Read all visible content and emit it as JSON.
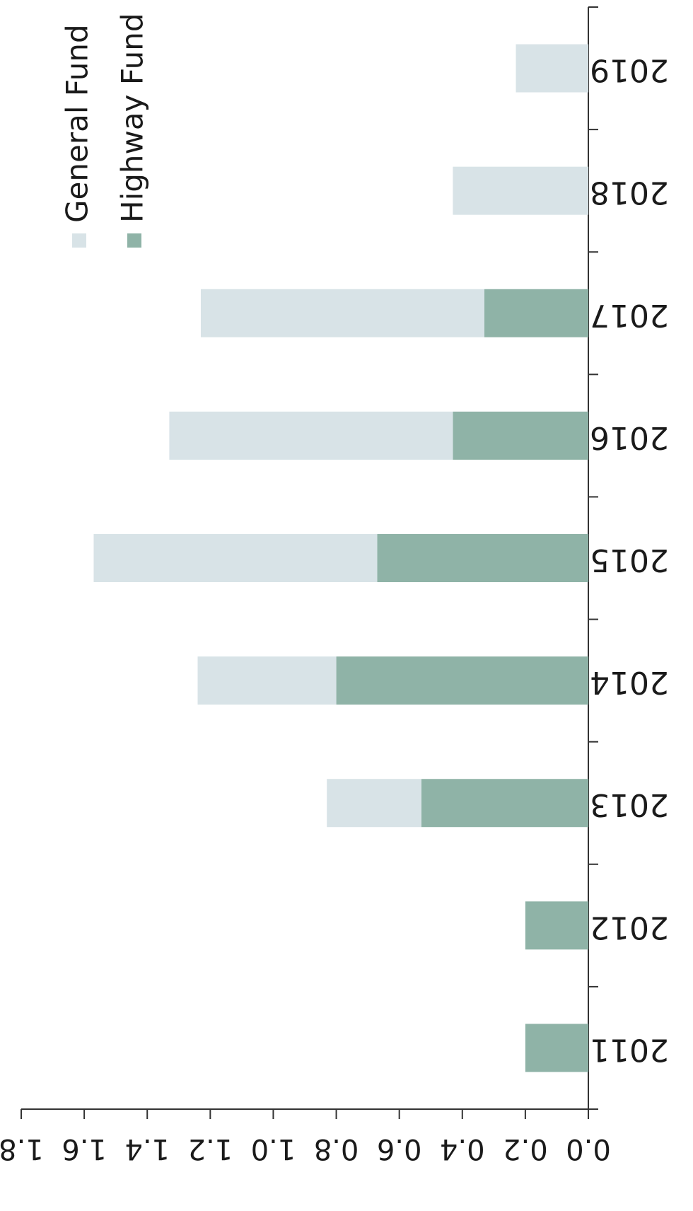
{
  "chart_data": {
    "type": "bar",
    "stacked": true,
    "orientation": "rotated",
    "categories": [
      "2011",
      "2012",
      "2013",
      "2014",
      "2015",
      "2016",
      "2017",
      "2018",
      "2019"
    ],
    "series": [
      {
        "name": "Highway Fund",
        "values": [
          0.2,
          0.2,
          0.53,
          0.8,
          0.67,
          0.43,
          0.33,
          0,
          0
        ],
        "color": "#8fb3a7"
      },
      {
        "name": "General Fund",
        "values": [
          0,
          0,
          0.3,
          0.44,
          0.9,
          0.9,
          0.9,
          0.43,
          0.23
        ],
        "color": "#d8e3e7"
      }
    ],
    "value_axis": {
      "min": 0,
      "max": 1.8,
      "ticks": [
        "0.0",
        "0.2",
        "0.4",
        "0.6",
        "0.8",
        "1.0",
        "1.2",
        "1.4",
        "1.6",
        "1.8"
      ]
    },
    "legend": {
      "placement": "top-right"
    },
    "grid": false
  }
}
